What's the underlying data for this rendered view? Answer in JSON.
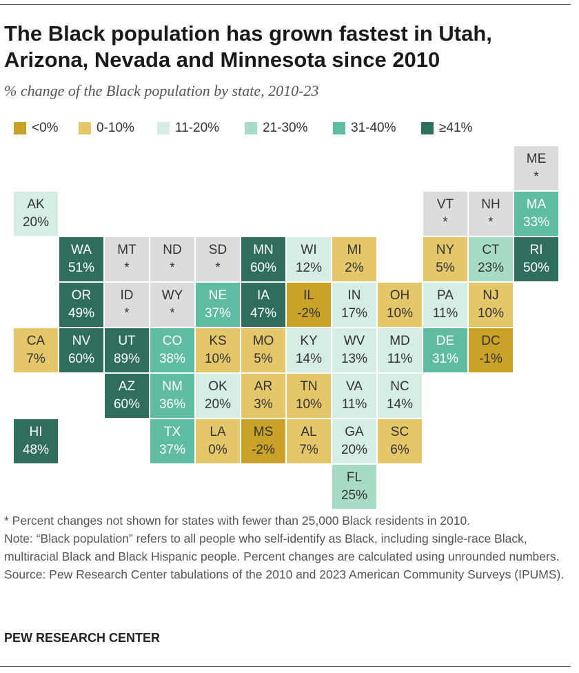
{
  "title": "The Black population has grown fastest in Utah, Arizona, Nevada and Minnesota since 2010",
  "subtitle": "% change of the Black population by state, 2010-23",
  "colors": {
    "lt0": "#c9a227",
    "0to10": "#e3c76a",
    "11to20": "#d5ede3",
    "21to30": "#a8dbc6",
    "31to40": "#5fbca3",
    "ge41": "#2f6e5d",
    "na": "#dcdcdc"
  },
  "legend": [
    {
      "key": "lt0",
      "label": "<0%"
    },
    {
      "key": "0to10",
      "label": "0-10%"
    },
    {
      "key": "11to20",
      "label": "11-20%"
    },
    {
      "key": "21to30",
      "label": "21-30%"
    },
    {
      "key": "31to40",
      "label": "31-40%"
    },
    {
      "key": "ge41",
      "label": "≥41%"
    }
  ],
  "states": [
    {
      "abbr": "ME",
      "value": "*",
      "bin": "na",
      "row": 0,
      "col": 11
    },
    {
      "abbr": "AK",
      "value": "20%",
      "bin": "11to20",
      "row": 1,
      "col": 0
    },
    {
      "abbr": "VT",
      "value": "*",
      "bin": "na",
      "row": 1,
      "col": 9
    },
    {
      "abbr": "NH",
      "value": "*",
      "bin": "na",
      "row": 1,
      "col": 10
    },
    {
      "abbr": "MA",
      "value": "33%",
      "bin": "31to40",
      "row": 1,
      "col": 11
    },
    {
      "abbr": "WA",
      "value": "51%",
      "bin": "ge41",
      "row": 2,
      "col": 1
    },
    {
      "abbr": "MT",
      "value": "*",
      "bin": "na",
      "row": 2,
      "col": 2
    },
    {
      "abbr": "ND",
      "value": "*",
      "bin": "na",
      "row": 2,
      "col": 3
    },
    {
      "abbr": "SD",
      "value": "*",
      "bin": "na",
      "row": 2,
      "col": 4
    },
    {
      "abbr": "MN",
      "value": "60%",
      "bin": "ge41",
      "row": 2,
      "col": 5
    },
    {
      "abbr": "WI",
      "value": "12%",
      "bin": "11to20",
      "row": 2,
      "col": 6
    },
    {
      "abbr": "MI",
      "value": "2%",
      "bin": "0to10",
      "row": 2,
      "col": 7
    },
    {
      "abbr": "NY",
      "value": "5%",
      "bin": "0to10",
      "row": 2,
      "col": 9
    },
    {
      "abbr": "CT",
      "value": "23%",
      "bin": "21to30",
      "row": 2,
      "col": 10
    },
    {
      "abbr": "RI",
      "value": "50%",
      "bin": "ge41",
      "row": 2,
      "col": 11
    },
    {
      "abbr": "OR",
      "value": "49%",
      "bin": "ge41",
      "row": 3,
      "col": 1
    },
    {
      "abbr": "ID",
      "value": "*",
      "bin": "na",
      "row": 3,
      "col": 2
    },
    {
      "abbr": "WY",
      "value": "*",
      "bin": "na",
      "row": 3,
      "col": 3
    },
    {
      "abbr": "NE",
      "value": "37%",
      "bin": "31to40",
      "row": 3,
      "col": 4
    },
    {
      "abbr": "IA",
      "value": "47%",
      "bin": "ge41",
      "row": 3,
      "col": 5
    },
    {
      "abbr": "IL",
      "value": "-2%",
      "bin": "lt0",
      "row": 3,
      "col": 6
    },
    {
      "abbr": "IN",
      "value": "17%",
      "bin": "11to20",
      "row": 3,
      "col": 7
    },
    {
      "abbr": "OH",
      "value": "10%",
      "bin": "0to10",
      "row": 3,
      "col": 8
    },
    {
      "abbr": "PA",
      "value": "11%",
      "bin": "11to20",
      "row": 3,
      "col": 9
    },
    {
      "abbr": "NJ",
      "value": "10%",
      "bin": "0to10",
      "row": 3,
      "col": 10
    },
    {
      "abbr": "CA",
      "value": "7%",
      "bin": "0to10",
      "row": 4,
      "col": 0
    },
    {
      "abbr": "NV",
      "value": "60%",
      "bin": "ge41",
      "row": 4,
      "col": 1
    },
    {
      "abbr": "UT",
      "value": "89%",
      "bin": "ge41",
      "row": 4,
      "col": 2
    },
    {
      "abbr": "CO",
      "value": "38%",
      "bin": "31to40",
      "row": 4,
      "col": 3
    },
    {
      "abbr": "KS",
      "value": "10%",
      "bin": "0to10",
      "row": 4,
      "col": 4
    },
    {
      "abbr": "MO",
      "value": "5%",
      "bin": "0to10",
      "row": 4,
      "col": 5
    },
    {
      "abbr": "KY",
      "value": "14%",
      "bin": "11to20",
      "row": 4,
      "col": 6
    },
    {
      "abbr": "WV",
      "value": "13%",
      "bin": "11to20",
      "row": 4,
      "col": 7
    },
    {
      "abbr": "MD",
      "value": "11%",
      "bin": "11to20",
      "row": 4,
      "col": 8
    },
    {
      "abbr": "DE",
      "value": "31%",
      "bin": "31to40",
      "row": 4,
      "col": 9
    },
    {
      "abbr": "DC",
      "value": "-1%",
      "bin": "lt0",
      "row": 4,
      "col": 10
    },
    {
      "abbr": "AZ",
      "value": "60%",
      "bin": "ge41",
      "row": 5,
      "col": 2
    },
    {
      "abbr": "NM",
      "value": "36%",
      "bin": "31to40",
      "row": 5,
      "col": 3
    },
    {
      "abbr": "OK",
      "value": "20%",
      "bin": "11to20",
      "row": 5,
      "col": 4
    },
    {
      "abbr": "AR",
      "value": "3%",
      "bin": "0to10",
      "row": 5,
      "col": 5
    },
    {
      "abbr": "TN",
      "value": "10%",
      "bin": "0to10",
      "row": 5,
      "col": 6
    },
    {
      "abbr": "VA",
      "value": "11%",
      "bin": "11to20",
      "row": 5,
      "col": 7
    },
    {
      "abbr": "NC",
      "value": "14%",
      "bin": "11to20",
      "row": 5,
      "col": 8
    },
    {
      "abbr": "HI",
      "value": "48%",
      "bin": "ge41",
      "row": 6,
      "col": 0
    },
    {
      "abbr": "TX",
      "value": "37%",
      "bin": "31to40",
      "row": 6,
      "col": 3
    },
    {
      "abbr": "LA",
      "value": "0%",
      "bin": "0to10",
      "row": 6,
      "col": 4
    },
    {
      "abbr": "MS",
      "value": "-2%",
      "bin": "lt0",
      "row": 6,
      "col": 5
    },
    {
      "abbr": "AL",
      "value": "7%",
      "bin": "0to10",
      "row": 6,
      "col": 6
    },
    {
      "abbr": "GA",
      "value": "20%",
      "bin": "11to20",
      "row": 6,
      "col": 7
    },
    {
      "abbr": "SC",
      "value": "6%",
      "bin": "0to10",
      "row": 6,
      "col": 8
    },
    {
      "abbr": "FL",
      "value": "25%",
      "bin": "21to30",
      "row": 7,
      "col": 7
    }
  ],
  "notes": {
    "asterisk": "* Percent changes not shown for states with fewer than 25,000 Black residents in 2010.",
    "note": "Note: “Black population” refers to all people who self-identify as Black, including single-race Black, multiracial Black and Black Hispanic people. Percent changes are calculated using unrounded numbers.",
    "source": "Source: Pew Research Center tabulations of the 2010 and 2023 American Community Surveys (IPUMS)."
  },
  "brand": "PEW RESEARCH CENTER"
}
